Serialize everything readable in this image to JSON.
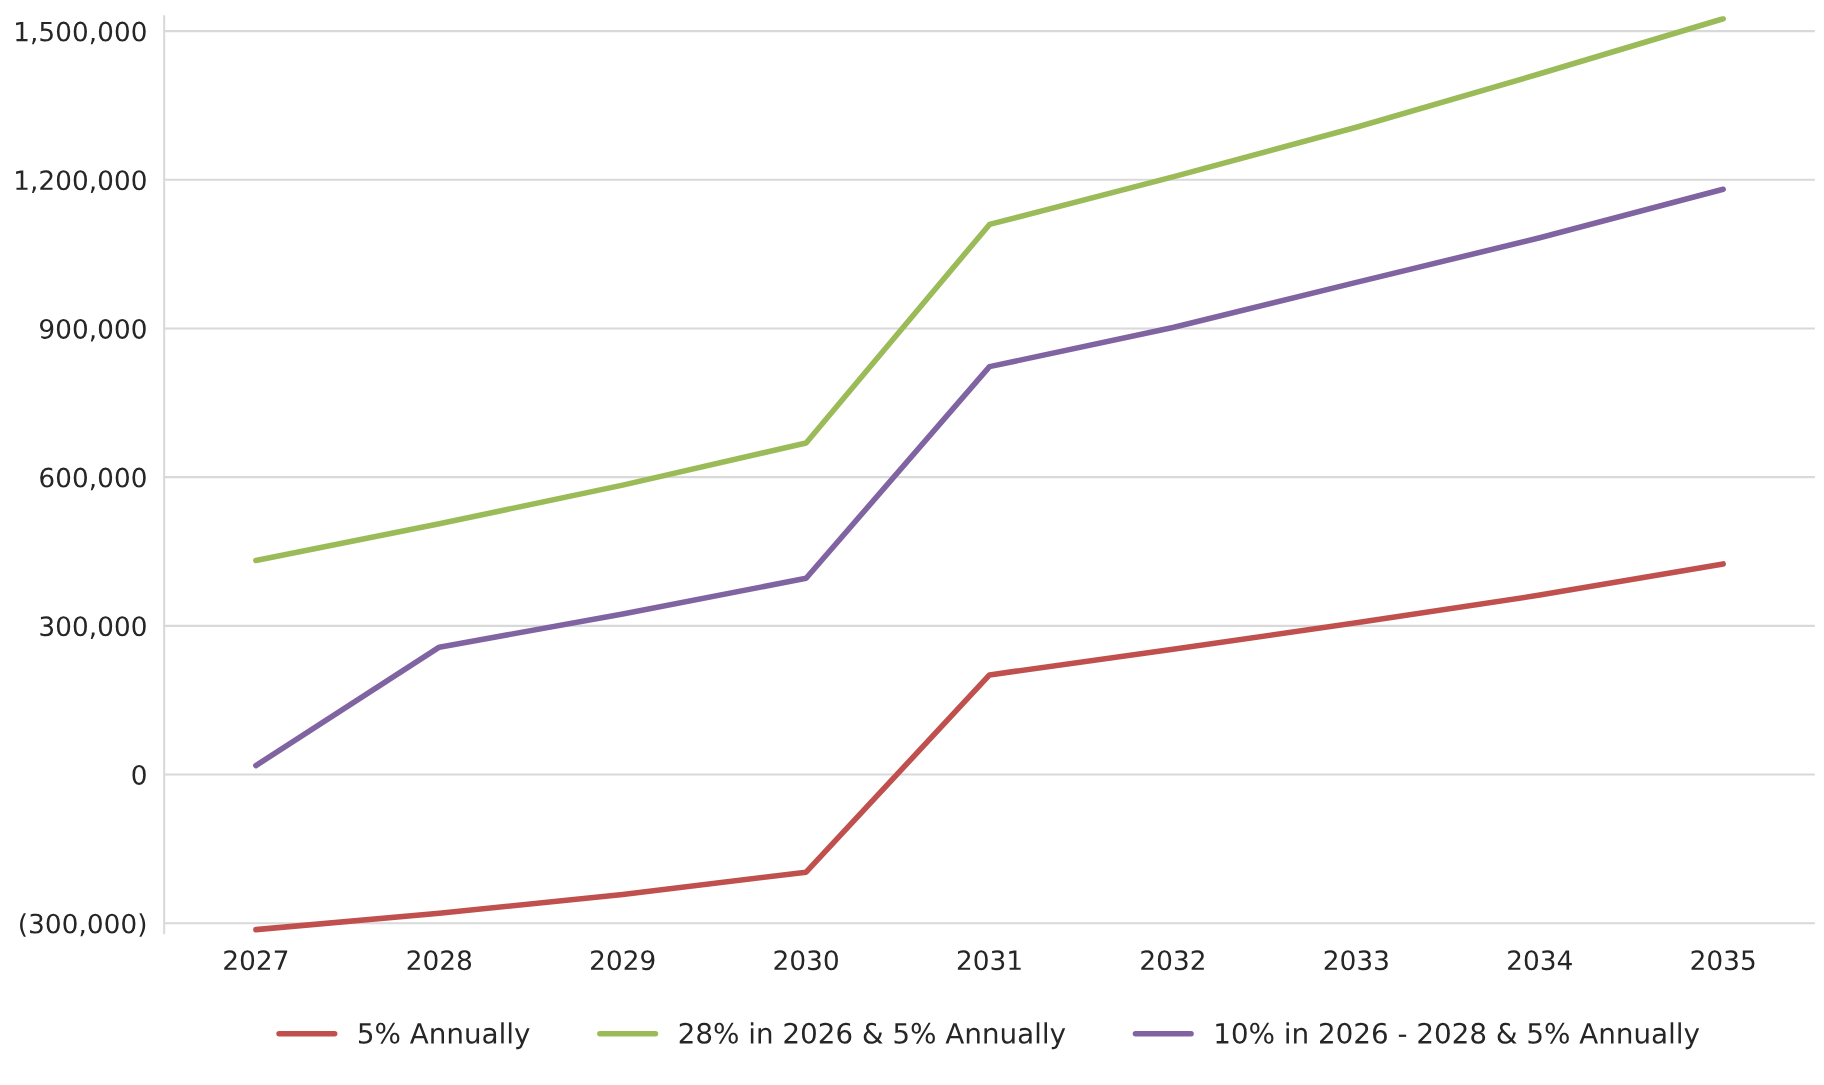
{
  "chart_data": {
    "type": "line",
    "categories": [
      "2027",
      "2028",
      "2029",
      "2030",
      "2031",
      "2032",
      "2033",
      "2034",
      "2035"
    ],
    "series": [
      {
        "name": "5% Annually",
        "color": "#c0504d",
        "values": [
          -313000,
          -280000,
          -242000,
          -197000,
          201000,
          253000,
          306000,
          362000,
          425000
        ]
      },
      {
        "name": "28% in 2026 & 5% Annually",
        "color": "#9bbb59",
        "values": [
          432000,
          506000,
          584000,
          669000,
          1110000,
          1206000,
          1306000,
          1414000,
          1525000
        ]
      },
      {
        "name": "10% in 2026 - 2028 & 5% Annually",
        "color": "#8064a2",
        "values": [
          18000,
          257000,
          324000,
          396000,
          823000,
          902000,
          993000,
          1083000,
          1181000
        ]
      }
    ],
    "ylim": [
      -320000,
      1530000
    ],
    "yticks": [
      {
        "value": -300000,
        "label": "(300,000)"
      },
      {
        "value": 0,
        "label": "0"
      },
      {
        "value": 300000,
        "label": "300,000"
      },
      {
        "value": 600000,
        "label": "600,000"
      },
      {
        "value": 900000,
        "label": "900,000"
      },
      {
        "value": 1200000,
        "label": "1,200,000"
      },
      {
        "value": 1500000,
        "label": "1,500,000"
      }
    ],
    "grid": "y",
    "legend": "bottom",
    "marker": "none",
    "line_style": "solid"
  }
}
